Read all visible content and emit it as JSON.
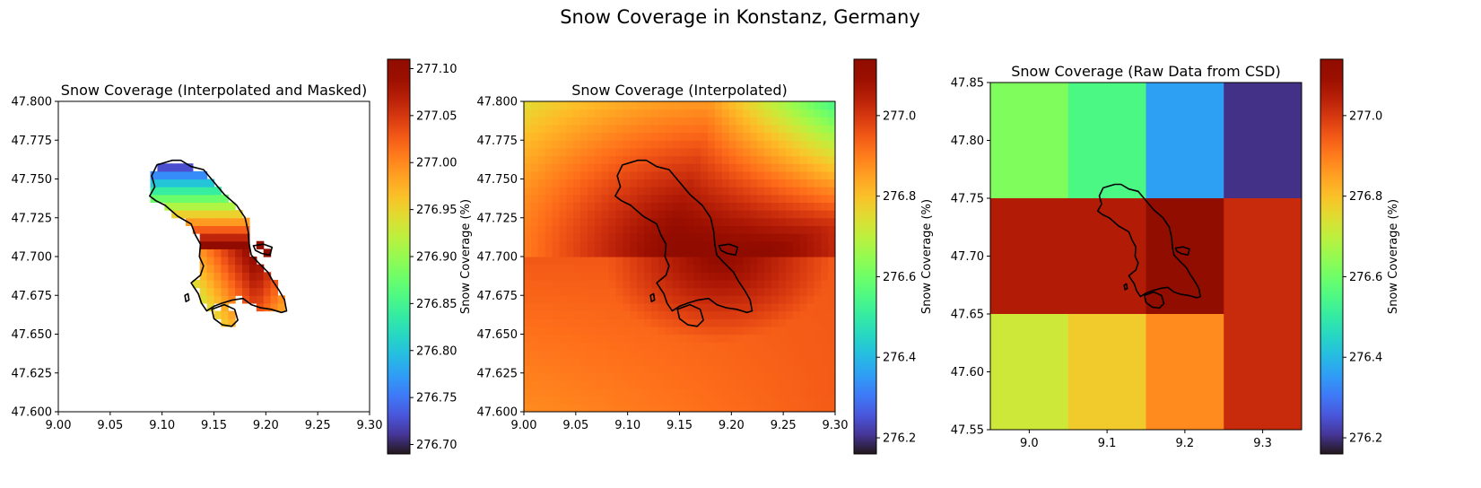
{
  "figure": {
    "suptitle": "Snow Coverage in Konstanz, Germany"
  },
  "chart_data": [
    {
      "type": "heatmap",
      "title": "Snow Coverage (Interpolated and Masked)",
      "xlabel": "",
      "ylabel": "",
      "xlim": [
        9.0,
        9.3
      ],
      "ylim": [
        47.6,
        47.8
      ],
      "xticks": [
        "9.00",
        "9.05",
        "9.10",
        "9.15",
        "9.20",
        "9.25",
        "9.30"
      ],
      "yticks": [
        "47.600",
        "47.625",
        "47.650",
        "47.675",
        "47.700",
        "47.725",
        "47.750",
        "47.775",
        "47.800"
      ],
      "colorbar": {
        "label": "",
        "min": 276.69,
        "max": 277.11,
        "ticks": [
          "276.70",
          "276.75",
          "276.80",
          "276.85",
          "276.90",
          "276.95",
          "277.00",
          "277.05",
          "277.10"
        ]
      },
      "colormap": "turbo",
      "masked": true
    },
    {
      "type": "heatmap",
      "title": "Snow Coverage (Interpolated)",
      "xlabel": "",
      "ylabel": "Snow Coverage (%)",
      "xlim": [
        9.0,
        9.3
      ],
      "ylim": [
        47.6,
        47.8
      ],
      "xticks": [
        "9.00",
        "9.05",
        "9.10",
        "9.15",
        "9.20",
        "9.25",
        "9.30"
      ],
      "yticks": [
        "47.600",
        "47.625",
        "47.650",
        "47.675",
        "47.700",
        "47.725",
        "47.750",
        "47.775",
        "47.800"
      ],
      "colorbar": {
        "label": "Snow Coverage (%)",
        "min": 276.16,
        "max": 277.14,
        "ticks": [
          "276.2",
          "276.4",
          "276.6",
          "276.8",
          "277.0"
        ]
      },
      "colormap": "turbo",
      "masked": false
    },
    {
      "type": "heatmap",
      "title": "Snow Coverage (Raw Data from CSD)",
      "xlabel": "",
      "ylabel": "",
      "xlim": [
        8.95,
        9.35
      ],
      "ylim": [
        47.55,
        47.85
      ],
      "xticks": [
        "9.0",
        "9.1",
        "9.2",
        "9.3"
      ],
      "yticks": [
        "47.55",
        "47.60",
        "47.65",
        "47.70",
        "47.75",
        "47.80",
        "47.85"
      ],
      "colorbar": {
        "label": "Snow Coverage (%)",
        "min": 276.16,
        "max": 277.14,
        "ticks": [
          "276.2",
          "276.4",
          "276.6",
          "276.8",
          "277.0"
        ]
      },
      "colormap": "turbo",
      "grid_lon": [
        9.0,
        9.1,
        9.2,
        9.3
      ],
      "grid_lat": [
        47.8,
        47.7,
        47.6
      ],
      "values": [
        [
          276.62,
          276.55,
          276.36,
          276.2
        ],
        [
          277.05,
          277.05,
          277.14,
          277.02
        ],
        [
          276.72,
          276.78,
          276.88,
          277.02
        ]
      ]
    }
  ]
}
